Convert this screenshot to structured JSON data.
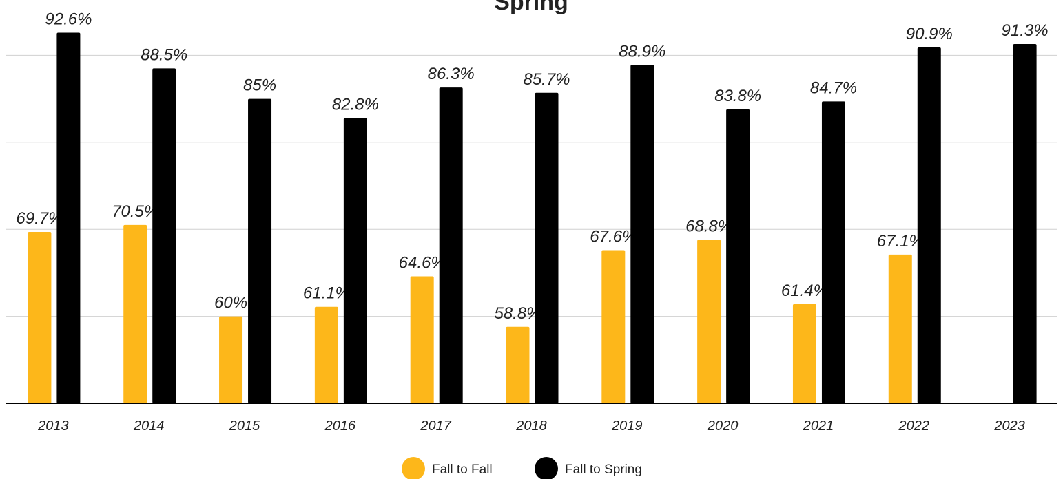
{
  "chart_data": {
    "type": "bar",
    "title": "Spring",
    "categories": [
      "2013",
      "2014",
      "2015",
      "2016",
      "2017",
      "2018",
      "2019",
      "2020",
      "2021",
      "2022",
      "2023"
    ],
    "series": [
      {
        "name": "Fall to Fall",
        "color": "#FDB71A",
        "values": [
          69.7,
          70.5,
          60,
          61.1,
          64.6,
          58.8,
          67.6,
          68.8,
          61.4,
          67.1,
          null
        ],
        "value_labels": [
          "69.7%",
          "70.5%",
          "60%",
          "61.1%",
          "64.6%",
          "58.8%",
          "67.6%",
          "68.8%",
          "61.4%",
          "67.1%",
          null
        ]
      },
      {
        "name": "Fall to Spring",
        "color": "#000000",
        "values": [
          92.6,
          88.5,
          85,
          82.8,
          86.3,
          85.7,
          88.9,
          83.8,
          84.7,
          90.9,
          91.3
        ],
        "value_labels": [
          "92.6%",
          "88.5%",
          "85%",
          "82.8%",
          "86.3%",
          "85.7%",
          "88.9%",
          "83.8%",
          "84.7%",
          "90.9%",
          "91.3%"
        ]
      }
    ],
    "ylim": [
      50,
      100
    ],
    "yticks": [
      50,
      60,
      70,
      80,
      90
    ],
    "grid": true
  }
}
